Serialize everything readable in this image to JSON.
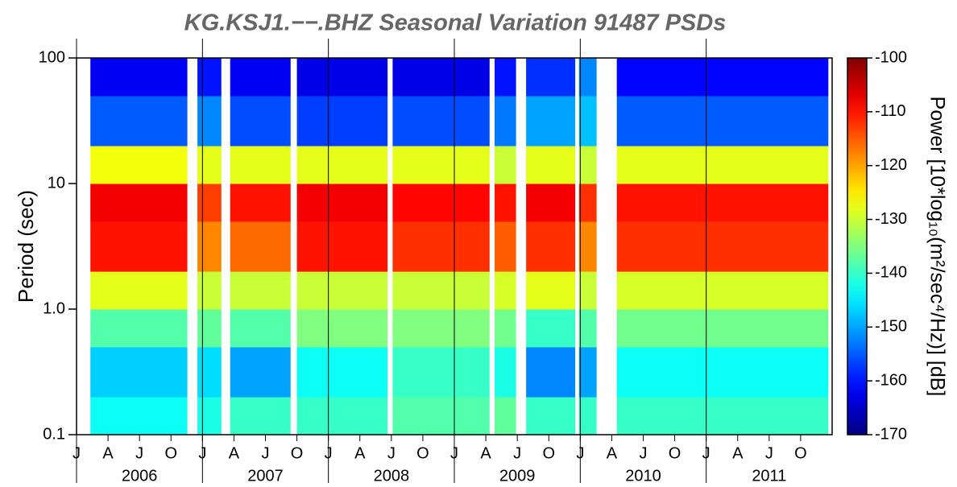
{
  "chart_data": {
    "type": "heatmap",
    "title": "KG.KSJ1.−−.BHZ Seasonal Variation 91487 PSDs",
    "y_label": "Period (sec)",
    "colorbar_label": "Power [10*log₁₀(m²/sec⁴/Hz)] [dB]",
    "colormap": "jet",
    "log_y": true,
    "xlim": [
      2006,
      2012
    ],
    "ylim": [
      0.1,
      100
    ],
    "yticks": [
      0.1,
      {
        "value": 1,
        "label": "1.0"
      },
      10,
      100
    ],
    "xticks": [
      {
        "value": 2006.0,
        "label": "J"
      },
      {
        "value": 2006.25,
        "label": "A"
      },
      {
        "value": 2006.5,
        "label": "J"
      },
      {
        "value": 2006.75,
        "label": "O"
      },
      {
        "value": 2007.0,
        "label": "J"
      },
      {
        "value": 2007.25,
        "label": "A"
      },
      {
        "value": 2007.5,
        "label": "J"
      },
      {
        "value": 2007.75,
        "label": "O"
      },
      {
        "value": 2008.0,
        "label": "J"
      },
      {
        "value": 2008.25,
        "label": "A"
      },
      {
        "value": 2008.5,
        "label": "J"
      },
      {
        "value": 2008.75,
        "label": "O"
      },
      {
        "value": 2009.0,
        "label": "J"
      },
      {
        "value": 2009.25,
        "label": "A"
      },
      {
        "value": 2009.5,
        "label": "J"
      },
      {
        "value": 2009.75,
        "label": "O"
      },
      {
        "value": 2010.0,
        "label": "J"
      },
      {
        "value": 2010.25,
        "label": "A"
      },
      {
        "value": 2010.5,
        "label": "J"
      },
      {
        "value": 2010.75,
        "label": "O"
      },
      {
        "value": 2011.0,
        "label": "J"
      },
      {
        "value": 2011.25,
        "label": "A"
      },
      {
        "value": 2011.5,
        "label": "J"
      },
      {
        "value": 2011.75,
        "label": "O"
      }
    ],
    "years": [
      2006,
      2007,
      2008,
      2009,
      2010,
      2011
    ],
    "clim": [
      -170,
      -100
    ],
    "cticks": [
      -100,
      -110,
      -120,
      -130,
      -140,
      -150,
      -160,
      -170
    ],
    "x_start": [
      2006.11,
      2006.96,
      2007.22,
      2007.75,
      2008.51,
      2009.32,
      2009.57,
      2009.99,
      2010.29
    ],
    "x_end": [
      2006.88,
      2007.15,
      2007.7,
      2008.47,
      2009.28,
      2009.49,
      2009.96,
      2010.13,
      2011.97
    ],
    "y_edges": [
      0.1,
      0.2,
      0.5,
      1,
      2,
      5,
      10,
      20,
      50,
      100
    ],
    "values": [
      [
        -143,
        -147,
        -138,
        -128,
        -110,
        -108,
        -127,
        -155,
        -162
      ],
      [
        -142,
        -146,
        -137,
        -130,
        -118,
        -113,
        -128,
        -152,
        -160
      ],
      [
        -140,
        -150,
        -138,
        -130,
        -116,
        -110,
        -128,
        -156,
        -162
      ],
      [
        -140,
        -143,
        -135,
        -130,
        -110,
        -108,
        -128,
        -157,
        -163
      ],
      [
        -138,
        -140,
        -135,
        -130,
        -112,
        -109,
        -128,
        -156,
        -163
      ],
      [
        -137,
        -142,
        -136,
        -129,
        -115,
        -110,
        -130,
        -153,
        -160
      ],
      [
        -140,
        -152,
        -140,
        -128,
        -112,
        -108,
        -128,
        -150,
        -158
      ],
      [
        -140,
        -150,
        -138,
        -130,
        -118,
        -112,
        -130,
        -148,
        -152
      ],
      [
        -140,
        -143,
        -136,
        -129,
        -112,
        -110,
        -128,
        -155,
        -161
      ]
    ]
  }
}
